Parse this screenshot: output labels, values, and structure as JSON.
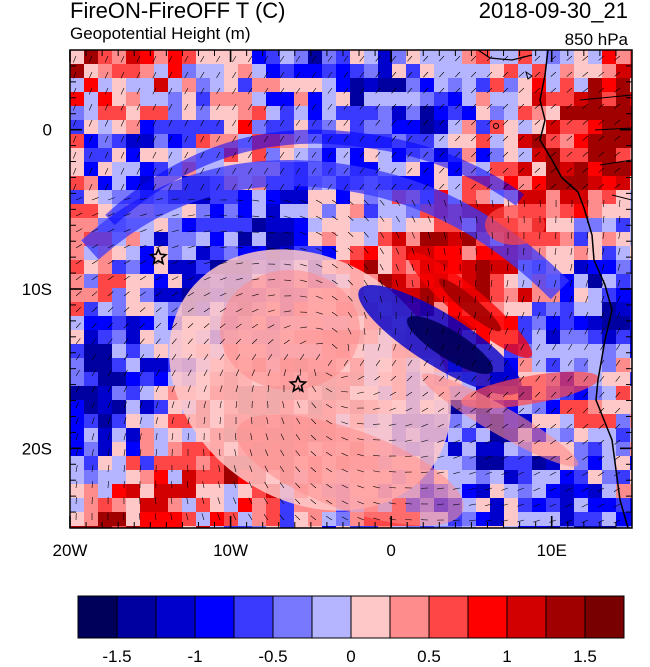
{
  "header": {
    "title_left": "FireON-FireOFF T (C)",
    "title_right": "2018-09-30_21",
    "subtitle_left": "Geopotential Height (m)",
    "subtitle_right": "850 hPa"
  },
  "map": {
    "lon_range": [
      -20,
      15
    ],
    "lat_range": [
      -25,
      5
    ],
    "lon_ticks": [
      {
        "value": -20,
        "label": "20W"
      },
      {
        "value": -10,
        "label": "10W"
      },
      {
        "value": 0,
        "label": "0"
      },
      {
        "value": 10,
        "label": "10E"
      }
    ],
    "lat_ticks": [
      {
        "value": 0,
        "label": "0"
      },
      {
        "value": -10,
        "label": "10S"
      },
      {
        "value": -20,
        "label": "20S"
      }
    ],
    "markers": [
      {
        "name": "star-marker",
        "lon": -14.5,
        "lat": -8
      },
      {
        "name": "star-marker",
        "lon": -5.8,
        "lat": -16
      }
    ]
  },
  "colorbar": {
    "colors": [
      "#00005a",
      "#0000a0",
      "#0000cc",
      "#0000ff",
      "#3a3aff",
      "#7878ff",
      "#b4b4ff",
      "#ffc8c8",
      "#ff8c8c",
      "#ff4646",
      "#ff0000",
      "#d20000",
      "#a00000",
      "#780000"
    ],
    "labels": [
      {
        "index": 1,
        "text": "-1.5"
      },
      {
        "index": 3,
        "text": "-1"
      },
      {
        "index": 5,
        "text": "-0.5"
      },
      {
        "index": 7,
        "text": "0"
      },
      {
        "index": 9,
        "text": "0.5"
      },
      {
        "index": 11,
        "text": "1"
      },
      {
        "index": 13,
        "text": "1.5"
      }
    ]
  }
}
